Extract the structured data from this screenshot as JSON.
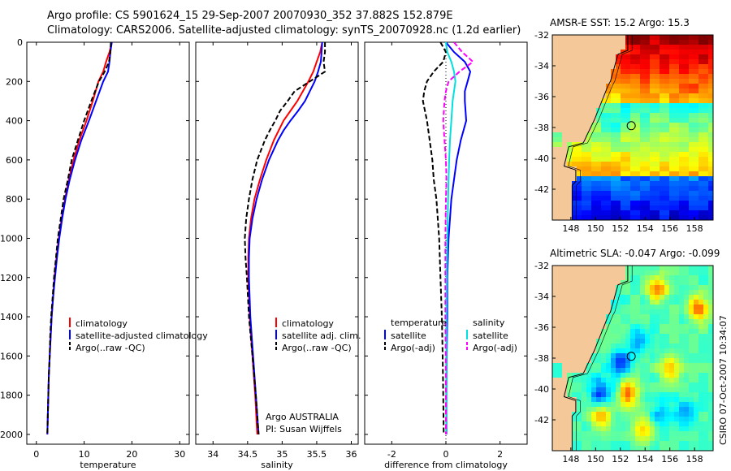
{
  "title_line1": "Argo profile: CS 5901624_15 29-Sep-2007 20070930_352 37.882S 152.879E",
  "title_line2": "Climatology: CARS2006. Satellite-adjusted climatology: synTS_20070928.nc (1.2d earlier)",
  "side_stamp": "CSIRO 07-Oct-2007 10:34:07",
  "attribution": {
    "line1": "Argo AUSTRALIA",
    "line2": "PI: Susan Wijffels"
  },
  "colors": {
    "clim": "#ff0000",
    "sat": "#0000ff",
    "argo": "#000000",
    "sal_sat": "#00e0e0",
    "sal_argo": "#ff00ff",
    "land": "#f5c89a"
  },
  "chart_data": [
    {
      "type": "line",
      "name": "temperature",
      "xlabel": "temperature",
      "xlim": [
        -2,
        32
      ],
      "xticks": [
        0,
        10,
        20,
        30
      ],
      "ylim": [
        0,
        2050
      ],
      "yticks": [
        0,
        200,
        400,
        600,
        800,
        1000,
        1200,
        1400,
        1600,
        1800,
        2000
      ],
      "legend": [
        "climatology",
        "satellite-adjusted climatology",
        "Argo(..raw -QC)"
      ],
      "depth": [
        0,
        50,
        100,
        150,
        200,
        300,
        400,
        500,
        600,
        700,
        800,
        900,
        1000,
        1100,
        1200,
        1300,
        1400,
        1500,
        1600,
        1700,
        1800,
        1900,
        2000
      ],
      "series": [
        {
          "name": "climatology",
          "values": [
            15.8,
            15.3,
            14.6,
            14.0,
            13.0,
            11.8,
            10.5,
            9.0,
            7.8,
            6.8,
            6.0,
            5.3,
            4.7,
            4.2,
            3.8,
            3.5,
            3.2,
            3.0,
            2.8,
            2.6,
            2.5,
            2.4,
            2.3
          ]
        },
        {
          "name": "satellite-adjusted climatology",
          "values": [
            15.8,
            15.5,
            15.3,
            15.0,
            14.0,
            12.5,
            11.0,
            9.4,
            8.1,
            7.0,
            6.1,
            5.4,
            4.8,
            4.3,
            3.9,
            3.5,
            3.2,
            3.0,
            2.8,
            2.6,
            2.5,
            2.4,
            2.3
          ]
        },
        {
          "name": "Argo(..raw -QC)",
          "values": [
            15.6,
            15.5,
            15.2,
            14.3,
            13.1,
            11.5,
            10.0,
            8.7,
            7.4,
            6.6,
            5.7,
            5.1,
            4.5,
            4.1,
            3.7,
            3.4,
            3.1,
            2.9,
            2.8,
            2.6,
            2.5,
            2.4,
            2.3
          ]
        }
      ]
    },
    {
      "type": "line",
      "name": "salinity",
      "xlabel": "salinity",
      "xlim": [
        33.75,
        36.1
      ],
      "xticks": [
        34,
        34.5,
        35,
        35.5,
        36
      ],
      "ylim": [
        0,
        2050
      ],
      "legend": [
        "climatology",
        "satellite adj. clim.",
        "Argo(..raw -QC)"
      ],
      "depth": [
        0,
        50,
        100,
        150,
        200,
        250,
        300,
        350,
        400,
        450,
        500,
        600,
        700,
        800,
        900,
        1000,
        1100,
        1200,
        1400,
        1600,
        1800,
        2000
      ],
      "series": [
        {
          "name": "climatology",
          "values": [
            35.58,
            35.55,
            35.5,
            35.45,
            35.38,
            35.3,
            35.22,
            35.12,
            35.02,
            34.95,
            34.88,
            34.77,
            34.68,
            34.6,
            34.55,
            34.52,
            34.51,
            34.51,
            34.53,
            34.57,
            34.61,
            34.64
          ]
        },
        {
          "name": "satellite adj. clim.",
          "values": [
            35.58,
            35.57,
            35.56,
            35.52,
            35.47,
            35.4,
            35.33,
            35.23,
            35.12,
            35.02,
            34.94,
            34.81,
            34.71,
            34.63,
            34.57,
            34.53,
            34.52,
            34.52,
            34.54,
            34.58,
            34.62,
            34.66
          ]
        },
        {
          "name": "Argo(..raw -QC)",
          "values": [
            35.62,
            35.62,
            35.6,
            35.62,
            35.4,
            35.18,
            35.08,
            34.97,
            34.9,
            34.82,
            34.75,
            34.64,
            34.57,
            34.52,
            34.48,
            34.46,
            34.47,
            34.49,
            34.52,
            34.57,
            34.62,
            34.66
          ]
        }
      ]
    },
    {
      "type": "line",
      "name": "difference",
      "xlabel": "difference from climatology",
      "xlim": [
        -3,
        3
      ],
      "xticks": [
        -2,
        0,
        2
      ],
      "ylim": [
        0,
        2050
      ],
      "legend_left": {
        "heading": "temperature",
        "items": [
          "satellite",
          "Argo(-adj)"
        ]
      },
      "legend_right": {
        "heading": "salinity",
        "items": [
          "satellite",
          "Argo(-adj)"
        ]
      },
      "depth": [
        0,
        50,
        100,
        150,
        200,
        250,
        300,
        400,
        500,
        600,
        700,
        800,
        1000,
        1200,
        1400,
        1600,
        1800,
        2000
      ],
      "series": [
        {
          "name": "temperature satellite",
          "values": [
            0.0,
            0.3,
            0.7,
            0.9,
            0.8,
            0.7,
            0.7,
            0.75,
            0.55,
            0.4,
            0.3,
            0.2,
            0.1,
            0.05,
            0.05,
            0.03,
            0.02,
            0.02
          ]
        },
        {
          "name": "temperature Argo(-adj)",
          "values": [
            -0.2,
            0.0,
            -0.1,
            -0.45,
            -0.7,
            -0.8,
            -0.85,
            -0.7,
            -0.6,
            -0.5,
            -0.45,
            -0.35,
            -0.25,
            -0.2,
            -0.15,
            -0.12,
            -0.1,
            -0.08
          ]
        },
        {
          "name": "salinity satellite",
          "values": [
            0.0,
            0.05,
            0.2,
            0.3,
            0.35,
            0.3,
            0.25,
            0.2,
            0.15,
            0.12,
            0.1,
            0.08,
            0.05,
            0.03,
            0.02,
            0.02,
            0.02,
            0.01
          ]
        },
        {
          "name": "salinity Argo(-adj)",
          "values": [
            0.3,
            0.6,
            1.0,
            0.5,
            0.1,
            0.0,
            -0.05,
            -0.1,
            -0.05,
            0.0,
            0.02,
            0.0,
            -0.02,
            -0.02,
            -0.02,
            -0.01,
            0.0,
            0.0
          ]
        }
      ]
    },
    {
      "type": "heatmap",
      "name": "sst_map",
      "title": "AMSR-E SST: 15.2  Argo: 15.3",
      "xlim": [
        146.5,
        159.5
      ],
      "ylim": [
        -44,
        -32
      ],
      "xticks": [
        148,
        150,
        152,
        154,
        156,
        158
      ],
      "yticks": [
        -32,
        -34,
        -36,
        -38,
        -40,
        -42
      ],
      "marker": {
        "lon": 152.879,
        "lat": -37.882
      }
    },
    {
      "type": "heatmap",
      "name": "sla_map",
      "title": "Altimetric SLA: -0.047  Argo: -0.099",
      "xlim": [
        146.5,
        159.5
      ],
      "ylim": [
        -44,
        -32
      ],
      "xticks": [
        148,
        150,
        152,
        154,
        156,
        158
      ],
      "yticks": [
        -32,
        -34,
        -36,
        -38,
        -40,
        -42
      ],
      "marker": {
        "lon": 152.879,
        "lat": -37.882
      }
    }
  ]
}
